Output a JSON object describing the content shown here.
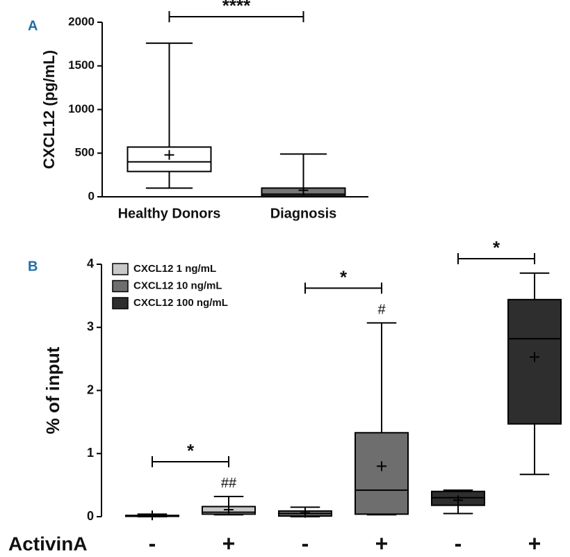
{
  "chart_data": [
    {
      "type": "box",
      "panel": "A",
      "ylabel": "CXCL12 (pg/mL)",
      "categories": [
        "Healthy Donors",
        "Diagnosis"
      ],
      "series": [
        {
          "colors": [
            "#ffffff",
            "#777777"
          ],
          "values": [
            {
              "min": 100,
              "q1": 290,
              "median": 400,
              "q3": 570,
              "max": 1760,
              "mean": 480
            },
            {
              "min": 0,
              "q1": 10,
              "median": 30,
              "q3": 100,
              "max": 490,
              "mean": 75
            }
          ]
        }
      ],
      "ylim": [
        0,
        2000
      ],
      "yticks": [
        0,
        500,
        1000,
        1500,
        2000
      ],
      "significance": [
        {
          "label": "****",
          "from": 0,
          "to": 1
        }
      ]
    },
    {
      "type": "box",
      "panel": "B",
      "ylabel": "% of input",
      "xlabel": "ActivinA",
      "categories": [
        "-",
        "+",
        "-",
        "+",
        "-",
        "+"
      ],
      "series": [
        {
          "name": "CXCL12 1 ng/mL",
          "color": "#c8c8c8",
          "values": [
            {
              "min": 0,
              "q1": 0.005,
              "median": 0.01,
              "q3": 0.02,
              "max": 0.04,
              "mean": 0.02
            },
            {
              "min": 0.03,
              "q1": 0.04,
              "median": 0.07,
              "q3": 0.16,
              "max": 0.32,
              "mean": 0.11
            },
            null,
            null,
            null,
            null
          ]
        },
        {
          "name": "CXCL12 10 ng/mL",
          "color": "#6e6e6e",
          "values": [
            null,
            null,
            {
              "min": 0,
              "q1": 0.01,
              "median": 0.05,
              "q3": 0.09,
              "max": 0.15,
              "mean": 0.06
            },
            {
              "min": 0.03,
              "q1": 0.04,
              "median": 0.42,
              "q3": 1.33,
              "max": 3.07,
              "mean": 0.8
            },
            null,
            null
          ]
        },
        {
          "name": "CXCL12 100 ng/mL",
          "color": "#2e2e2e",
          "values": [
            null,
            null,
            null,
            null,
            {
              "min": 0.05,
              "q1": 0.18,
              "median": 0.3,
              "q3": 0.4,
              "max": 0.42,
              "mean": 0.26
            },
            {
              "min": 0.67,
              "q1": 1.47,
              "median": 2.82,
              "q3": 3.44,
              "max": 3.86,
              "mean": 2.53
            }
          ]
        }
      ],
      "ylim": [
        0,
        4
      ],
      "yticks": [
        0,
        1,
        2,
        3,
        4
      ],
      "significance": [
        {
          "label": "*",
          "from": 0,
          "to": 1
        },
        {
          "label": "*",
          "from": 2,
          "to": 3
        },
        {
          "label": "*",
          "from": 4,
          "to": 5
        }
      ],
      "annotations": [
        {
          "text": "##",
          "category": 1
        },
        {
          "text": "#",
          "category": 3
        }
      ]
    }
  ]
}
